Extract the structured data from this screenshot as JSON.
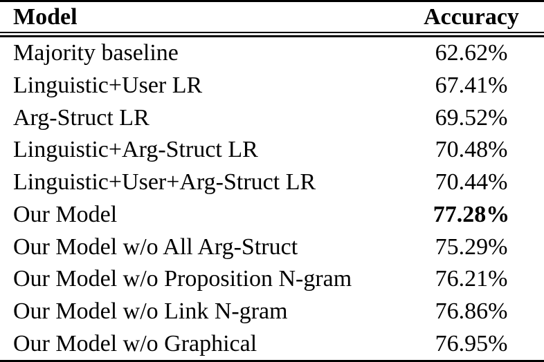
{
  "table": {
    "headers": {
      "model": "Model",
      "accuracy": "Accuracy"
    },
    "rows": [
      {
        "model": "Majority baseline",
        "accuracy": "62.62%"
      },
      {
        "model": "Linguistic+User LR",
        "accuracy": "67.41%"
      },
      {
        "model": "Arg-Struct LR",
        "accuracy": "69.52%"
      },
      {
        "model": "Linguistic+Arg-Struct LR",
        "accuracy": "70.48%"
      },
      {
        "model": "Linguistic+User+Arg-Struct LR",
        "accuracy": "70.44%"
      },
      {
        "model": "Our Model",
        "accuracy": "77.28%"
      },
      {
        "model": "Our Model w/o All Arg-Struct",
        "accuracy": "75.29%"
      },
      {
        "model": "Our Model w/o Proposition N-gram",
        "accuracy": "76.21%"
      },
      {
        "model": "Our Model w/o Link N-gram",
        "accuracy": "76.86%"
      },
      {
        "model": "Our Model w/o Graphical",
        "accuracy": "76.95%"
      }
    ]
  },
  "chart_data": {
    "type": "table",
    "columns": [
      "Model",
      "Accuracy"
    ],
    "rows": [
      [
        "Majority baseline",
        "62.62%"
      ],
      [
        "Linguistic+User LR",
        "67.41%"
      ],
      [
        "Arg-Struct LR",
        "69.52%"
      ],
      [
        "Linguistic+Arg-Struct LR",
        "70.48%"
      ],
      [
        "Linguistic+User+Arg-Struct LR",
        "70.44%"
      ],
      [
        "Our Model",
        "77.28%"
      ],
      [
        "Our Model w/o All Arg-Struct",
        "75.29%"
      ],
      [
        "Our Model w/o Proposition N-gram",
        "76.21%"
      ],
      [
        "Our Model w/o Link N-gram",
        "76.86%"
      ],
      [
        "Our Model w/o Graphical",
        "76.95%"
      ]
    ],
    "emphasized_cell": {
      "row": "Our Model",
      "column": "Accuracy",
      "value": "77.28%",
      "style": "bold"
    }
  },
  "colors": {
    "text": "#000000",
    "background": "#ffffff",
    "rule": "#000000"
  }
}
